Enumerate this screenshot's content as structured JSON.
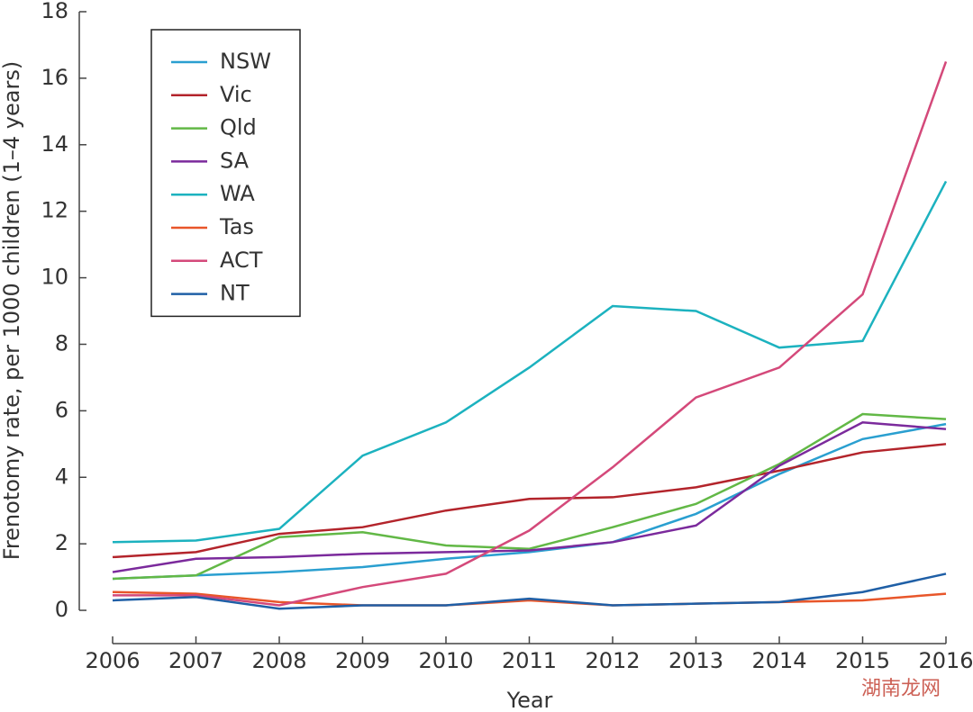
{
  "chart_data": {
    "type": "line",
    "x_label": "Year",
    "y_label": "Frenotomy rate, per 1000 children (1–4 years)",
    "x": [
      2006,
      2007,
      2008,
      2009,
      2010,
      2011,
      2012,
      2013,
      2014,
      2015,
      2016
    ],
    "xlim": [
      2005.6,
      2016
    ],
    "xticks": [
      2006,
      2007,
      2008,
      2009,
      2010,
      2011,
      2012,
      2013,
      2014,
      2015,
      2016
    ],
    "ylim": [
      -1,
      18
    ],
    "yticks": [
      0,
      2,
      4,
      6,
      8,
      10,
      12,
      14,
      16,
      18
    ],
    "legend": "upper left",
    "series": [
      {
        "name": "NSW",
        "color": "#2a9fd0",
        "values": [
          0.95,
          1.05,
          1.15,
          1.3,
          1.55,
          1.75,
          2.05,
          2.9,
          4.1,
          5.15,
          5.6
        ]
      },
      {
        "name": "Vic",
        "color": "#b3242b",
        "values": [
          1.6,
          1.75,
          2.3,
          2.5,
          3.0,
          3.35,
          3.4,
          3.7,
          4.2,
          4.75,
          5.0
        ]
      },
      {
        "name": "Qld",
        "color": "#62b846",
        "values": [
          0.95,
          1.05,
          2.2,
          2.35,
          1.95,
          1.85,
          2.5,
          3.2,
          4.4,
          5.9,
          5.75
        ]
      },
      {
        "name": "SA",
        "color": "#7b2a9c",
        "values": [
          1.15,
          1.55,
          1.6,
          1.7,
          1.75,
          1.8,
          2.05,
          2.55,
          4.35,
          5.65,
          5.45
        ]
      },
      {
        "name": "WA",
        "color": "#1cb2bf",
        "values": [
          2.05,
          2.1,
          2.45,
          4.65,
          5.65,
          7.3,
          9.15,
          9.0,
          7.9,
          8.1,
          12.9
        ]
      },
      {
        "name": "Tas",
        "color": "#e8562a",
        "values": [
          0.55,
          0.5,
          0.25,
          0.15,
          0.15,
          0.3,
          0.15,
          0.2,
          0.25,
          0.3,
          0.5
        ]
      },
      {
        "name": "ACT",
        "color": "#d4497a",
        "values": [
          0.45,
          0.45,
          0.15,
          0.7,
          1.1,
          2.4,
          4.3,
          6.4,
          7.3,
          9.5,
          16.5
        ]
      },
      {
        "name": "NT",
        "color": "#1f5fa6",
        "values": [
          0.3,
          0.4,
          0.05,
          0.15,
          0.15,
          0.35,
          0.15,
          0.2,
          0.25,
          0.55,
          1.1
        ]
      }
    ]
  },
  "watermark": "湖南龙网"
}
